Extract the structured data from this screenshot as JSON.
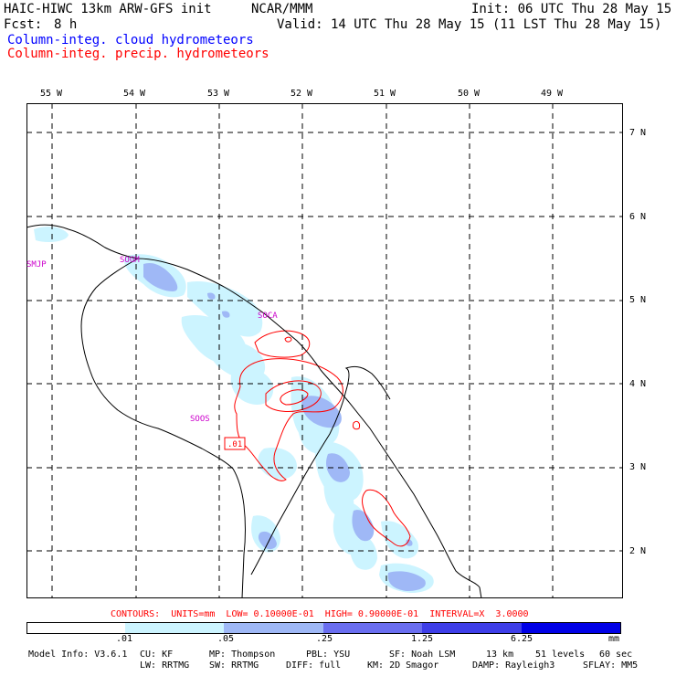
{
  "header": {
    "model_title": "HAIC-HIWC 13km ARW-GFS init",
    "center": "NCAR/MMM",
    "init": "Init: 06 UTC Thu 28 May 15",
    "fcst_label": "Fcst:",
    "fcst_value": "8 h",
    "valid": "Valid: 14 UTC Thu 28 May 15 (11 LST Thu 28 May 15)",
    "field1": "Column-integ. cloud hydrometeors",
    "field2": "Column-integ. precip. hydrometeors",
    "field1_color": "#0000ff",
    "field2_color": "#ff0000"
  },
  "longitude_labels": [
    "55 W",
    "54 W",
    "53 W",
    "52 W",
    "51 W",
    "50 W",
    "49 W"
  ],
  "latitude_labels": [
    "7 N",
    "6 N",
    "5 N",
    "4 N",
    "3 N",
    "2 N"
  ],
  "stations": [
    "SMJP",
    "SOGM",
    "SOCA",
    "SOOS"
  ],
  "contour_label": ".01",
  "contour_info": "CONTOURS:  UNITS=mm  LOW= 0.10000E-01  HIGH= 0.90000E-01  INTERVAL=X  3.0000",
  "colorbar": {
    "ticks": [
      ".01",
      ".05",
      ".25",
      "1.25",
      "6.25"
    ],
    "units": "mm",
    "colors": [
      "#ffffff",
      "#ccf4ff",
      "#9fb8f6",
      "#6a6ef0",
      "#3e3ee8",
      "#0000e6"
    ]
  },
  "footer": {
    "line1": [
      "Model Info: V3.6.1",
      "CU: KF",
      "MP: Thompson",
      "PBL: YSU",
      "SF: Noah LSM",
      "13 km",
      "51 levels",
      "60 sec"
    ],
    "line2": [
      "LW: RRTMG",
      "SW: RRTMG",
      "DIFF: full",
      "KM: 2D Smagor",
      "DAMP: Rayleigh3",
      "SFLAY: MM5"
    ]
  }
}
